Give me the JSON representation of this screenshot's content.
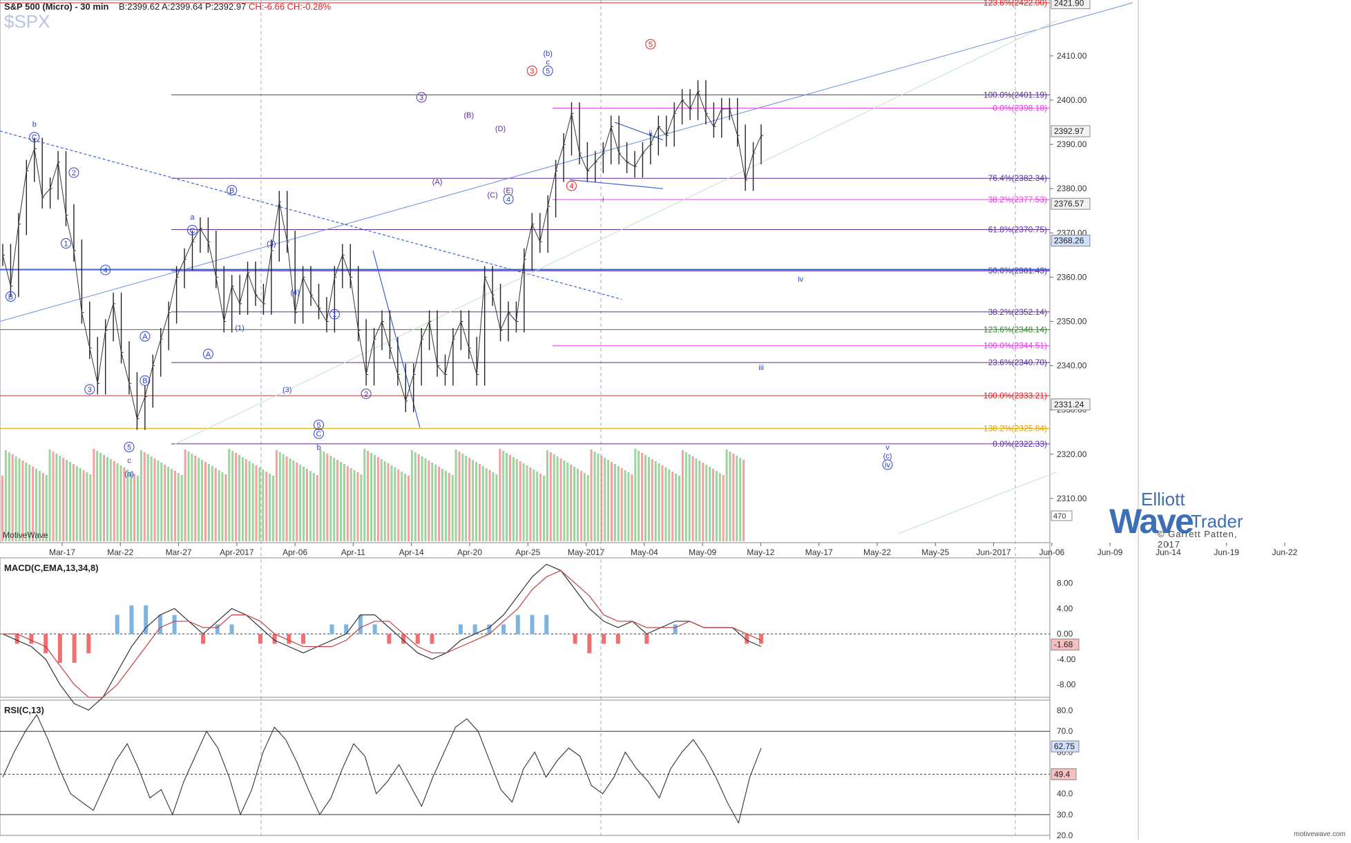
{
  "header": {
    "title": "S&P 500 (Micro) - 30 min",
    "bid": "B:2399.62",
    "ask": "A:2399.64",
    "price": "P:2392.97",
    "change": "CH:-6.66",
    "change_pct": "CH:-0.28%",
    "symbol": "$SPX"
  },
  "credit": "MotiveWave",
  "footer": "motivewave.com",
  "logo": {
    "top": "Elliott",
    "main": "Wave",
    "trader": "Trader",
    "copyright": "© Garrett Patten, 2017"
  },
  "colors": {
    "purple": "#5b2c9e",
    "magenta": "#e040e0",
    "green": "#2a8a2a",
    "red": "#e02020",
    "orange": "#e0a000",
    "blue": "#3a5fd0",
    "wave_blue": "#2a3fd0"
  },
  "chart_data": [
    {
      "type": "line",
      "name": "price",
      "ylim": [
        2300,
        2422
      ],
      "y_ticks": [
        "2310.00",
        "2320.00",
        "2330.00",
        "2340.00",
        "2350.00",
        "2360.00",
        "2370.00",
        "2380.00",
        "2390.00",
        "2400.00",
        "2410.00"
      ],
      "x_ticks": [
        "Mar-17",
        "Mar-22",
        "Mar-27",
        "Apr-2017",
        "Apr-06",
        "Apr-11",
        "Apr-14",
        "Apr-20",
        "Apr-25",
        "May-2017",
        "May-04",
        "May-09",
        "May-12",
        "May-17",
        "May-22",
        "May-25",
        "Jun-2017",
        "Jun-06",
        "Jun-09",
        "Jun-14",
        "Jun-19",
        "Jun-22"
      ],
      "price_tags": [
        {
          "label": "2421.90",
          "value": 2421.9,
          "style": "grey"
        },
        {
          "label": "2392.97",
          "value": 2392.97,
          "style": "grey"
        },
        {
          "label": "2376.57",
          "value": 2376.57,
          "style": "grey"
        },
        {
          "label": "2368.26",
          "value": 2368.26,
          "style": "blue"
        },
        {
          "label": "2331.24",
          "value": 2331.24,
          "style": "grey"
        }
      ],
      "fib_levels": [
        {
          "label": "123.6%(2422.00)",
          "value": 2422.0,
          "color": "red"
        },
        {
          "label": "100.0%(2401.19)",
          "value": 2401.19,
          "color": "purple"
        },
        {
          "label": "0.0%(2398.18)",
          "value": 2398.18,
          "color": "magenta"
        },
        {
          "label": "76.4%(2382.34)",
          "value": 2382.34,
          "color": "purple"
        },
        {
          "label": "38.2%(2377.53)",
          "value": 2377.53,
          "color": "magenta"
        },
        {
          "label": "61.8%(2370.75)",
          "value": 2370.75,
          "color": "purple"
        },
        {
          "label": "50.0%(2361.43)",
          "value": 2361.43,
          "color": "purple"
        },
        {
          "label": "38.2%(2352.14)",
          "value": 2352.14,
          "color": "purple"
        },
        {
          "label": "123.6%(2348.14)",
          "value": 2348.14,
          "color": "green"
        },
        {
          "label": "100.0%(2344.51)",
          "value": 2344.51,
          "color": "magenta"
        },
        {
          "label": "23.6%(2340.70)",
          "value": 2340.7,
          "color": "purple"
        },
        {
          "label": "100.0%(2333.21)",
          "value": 2333.21,
          "color": "red"
        },
        {
          "label": "138.2%(2325.84)",
          "value": 2325.84,
          "color": "orange"
        },
        {
          "label": "0.0%(2322.33)",
          "value": 2322.33,
          "color": "purple"
        }
      ],
      "close_series": [
        2365,
        2358,
        2372,
        2384,
        2389,
        2378,
        2380,
        2386,
        2374,
        2366,
        2352,
        2344,
        2336,
        2348,
        2354,
        2343,
        2336,
        2328,
        2333,
        2340,
        2346,
        2352,
        2360,
        2364,
        2368,
        2371,
        2368,
        2360,
        2350,
        2358,
        2354,
        2361,
        2356,
        2354,
        2366,
        2377,
        2368,
        2352,
        2360,
        2356,
        2353,
        2350,
        2360,
        2365,
        2360,
        2348,
        2338,
        2346,
        2350,
        2344,
        2338,
        2332,
        2338,
        2346,
        2350,
        2340,
        2338,
        2346,
        2350,
        2344,
        2338,
        2360,
        2356,
        2348,
        2352,
        2350,
        2364,
        2372,
        2368,
        2376,
        2384,
        2390,
        2397,
        2388,
        2384,
        2386,
        2388,
        2394,
        2388,
        2386,
        2385,
        2388,
        2390,
        2394,
        2392,
        2397,
        2400,
        2398,
        2402,
        2397,
        2394,
        2398,
        2398,
        2392,
        2382,
        2388,
        2392
      ],
      "wave_labels": [
        {
          "t": "b",
          "i": 4,
          "v": 2394,
          "color": "blue"
        },
        {
          "t": "C",
          "i": 4,
          "v": 2391,
          "color": "blue",
          "circle": true
        },
        {
          "t": "B",
          "i": 1,
          "v": 2355,
          "color": "blue",
          "circle": true
        },
        {
          "t": "2",
          "i": 9,
          "v": 2383,
          "color": "blue",
          "circle": true
        },
        {
          "t": "1",
          "i": 8,
          "v": 2367,
          "color": "blue",
          "circle": true
        },
        {
          "t": "4",
          "i": 13,
          "v": 2361,
          "color": "blue",
          "circle": true
        },
        {
          "t": "3",
          "i": 11,
          "v": 2334,
          "color": "blue",
          "circle": true
        },
        {
          "t": "A",
          "i": 18,
          "v": 2346,
          "color": "blue",
          "circle": true
        },
        {
          "t": "B",
          "i": 18,
          "v": 2336,
          "color": "blue",
          "circle": true
        },
        {
          "t": "5",
          "i": 16,
          "v": 2321,
          "color": "blue",
          "circle": true
        },
        {
          "t": "c",
          "i": 16,
          "v": 2318,
          "color": "blue"
        },
        {
          "t": "(a)",
          "i": 16,
          "v": 2315,
          "color": "blue"
        },
        {
          "t": "a",
          "i": 24,
          "v": 2373,
          "color": "blue"
        },
        {
          "t": "C",
          "i": 24,
          "v": 2370,
          "color": "blue",
          "circle": true
        },
        {
          "t": "A",
          "i": 26,
          "v": 2342,
          "color": "blue",
          "circle": true
        },
        {
          "t": "B",
          "i": 29,
          "v": 2379,
          "color": "blue",
          "circle": true
        },
        {
          "t": "(1)",
          "i": 30,
          "v": 2348,
          "color": "blue"
        },
        {
          "t": "(2)",
          "i": 34,
          "v": 2367,
          "color": "blue"
        },
        {
          "t": "(3)",
          "i": 36,
          "v": 2334,
          "color": "blue"
        },
        {
          "t": "(4)",
          "i": 37,
          "v": 2356,
          "color": "blue"
        },
        {
          "t": "5",
          "i": 40,
          "v": 2326,
          "color": "blue",
          "circle": true
        },
        {
          "t": "C",
          "i": 40,
          "v": 2324,
          "color": "blue",
          "circle": true
        },
        {
          "t": "b",
          "i": 40,
          "v": 2321,
          "color": "blue"
        },
        {
          "t": "1",
          "i": 42,
          "v": 2351,
          "color": "blue",
          "circle": true
        },
        {
          "t": "2",
          "i": 46,
          "v": 2333,
          "color": "purple",
          "circle": true
        },
        {
          "t": "3",
          "i": 53,
          "v": 2400,
          "color": "purple",
          "circle": true
        },
        {
          "t": "(A)",
          "i": 55,
          "v": 2381,
          "color": "purple"
        },
        {
          "t": "(B)",
          "i": 59,
          "v": 2396,
          "color": "purple"
        },
        {
          "t": "(C)",
          "i": 62,
          "v": 2378,
          "color": "purple"
        },
        {
          "t": "(D)",
          "i": 63,
          "v": 2393,
          "color": "purple"
        },
        {
          "t": "(E)",
          "i": 64,
          "v": 2379,
          "color": "purple"
        },
        {
          "t": "4",
          "i": 64,
          "v": 2377,
          "color": "blue",
          "circle": true
        },
        {
          "t": "3",
          "i": 67,
          "v": 2406,
          "color": "red",
          "circle": true
        },
        {
          "t": "(b)",
          "i": 69,
          "v": 2410,
          "color": "blue"
        },
        {
          "t": "c",
          "i": 69,
          "v": 2408,
          "color": "blue"
        },
        {
          "t": "5",
          "i": 69,
          "v": 2406,
          "color": "blue",
          "circle": true
        },
        {
          "t": "4",
          "i": 72,
          "v": 2380,
          "color": "red",
          "circle": true
        },
        {
          "t": "5",
          "i": 82,
          "v": 2412,
          "color": "red",
          "circle": true
        },
        {
          "t": "ii",
          "i": 82,
          "v": 2392,
          "color": "blue"
        },
        {
          "t": "i",
          "i": 76,
          "v": 2377,
          "color": "blue"
        },
        {
          "t": "iv",
          "i": 101,
          "v": 2359,
          "color": "blue"
        },
        {
          "t": "iii",
          "i": 96,
          "v": 2339,
          "color": "blue"
        },
        {
          "t": "v",
          "i": 112,
          "v": 2321,
          "color": "blue"
        },
        {
          "t": "(c)",
          "i": 112,
          "v": 2319,
          "color": "blue"
        },
        {
          "t": "iv",
          "i": 112,
          "v": 2317,
          "color": "blue",
          "circle": true
        }
      ]
    },
    {
      "type": "line",
      "name": "MACD(C,EMA,13,34,8)",
      "ylim": [
        -10,
        12
      ],
      "y_ticks": [
        "8.00",
        "4.00",
        "0.00",
        "-4.00",
        "-8.00"
      ],
      "value_tag": "-1.68",
      "macd": [
        0,
        -1,
        -2,
        -4,
        -8,
        -11,
        -12,
        -10,
        -6,
        -2,
        1,
        3,
        4,
        2,
        0,
        2,
        4,
        3,
        1,
        -1,
        -2,
        -3,
        -2,
        -1,
        0,
        3,
        3,
        1,
        -1,
        -3,
        -4,
        -3,
        -1,
        0,
        1,
        3,
        6,
        9,
        11,
        10,
        7,
        4,
        2,
        1,
        2,
        0,
        1,
        2,
        2,
        1,
        1,
        1,
        -1,
        -2
      ],
      "signal": [
        0,
        0,
        -1,
        -2,
        -5,
        -8,
        -10,
        -10,
        -8,
        -5,
        -2,
        1,
        2,
        2,
        1,
        1,
        3,
        3,
        2,
        0,
        -1,
        -2,
        -2,
        -2,
        -1,
        1,
        2,
        2,
        0,
        -2,
        -3,
        -3,
        -2,
        -1,
        0,
        2,
        4,
        7,
        9,
        10,
        8,
        6,
        3,
        2,
        2,
        1,
        1,
        1,
        2,
        1,
        1,
        1,
        0,
        -1
      ]
    },
    {
      "type": "line",
      "name": "RSI(C,13)",
      "ylim": [
        20,
        85
      ],
      "y_ticks": [
        "80.0",
        "70.0",
        "60.0",
        "50.0",
        "40.0",
        "30.0",
        "20.0"
      ],
      "value_tags": [
        "62.75",
        "49.4"
      ],
      "rsi": [
        48,
        60,
        70,
        78,
        66,
        52,
        40,
        36,
        32,
        44,
        56,
        64,
        52,
        38,
        42,
        30,
        46,
        58,
        70,
        62,
        48,
        30,
        42,
        60,
        72,
        66,
        55,
        42,
        30,
        38,
        52,
        64,
        58,
        40,
        46,
        54,
        44,
        34,
        48,
        60,
        72,
        76,
        70,
        56,
        42,
        36,
        52,
        60,
        48,
        56,
        62,
        58,
        44,
        40,
        48,
        60,
        52,
        46,
        38,
        52,
        60,
        66,
        58,
        48,
        36,
        26,
        48,
        62
      ]
    }
  ]
}
